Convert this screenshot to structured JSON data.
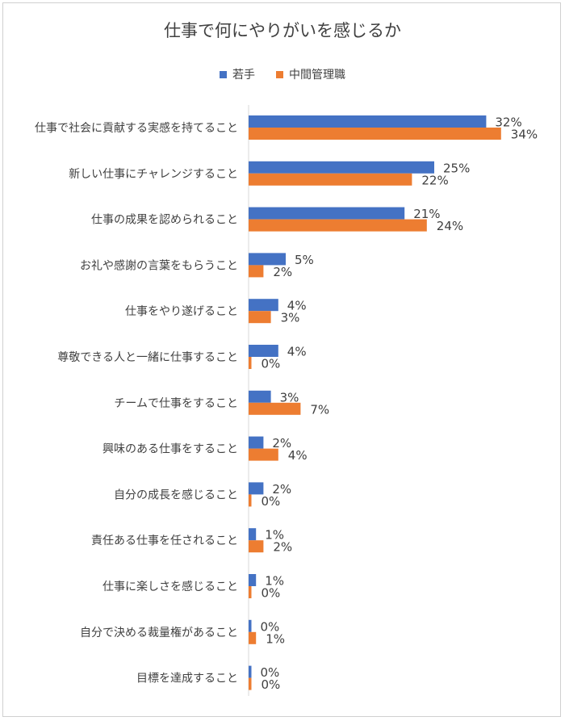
{
  "chart_data": {
    "type": "bar",
    "orientation": "horizontal",
    "title": "仕事で何にやりがいを感じるか",
    "legend_position": "top",
    "categories": [
      "仕事で社会に貢献する実感を持てること",
      "新しい仕事にチャレンジすること",
      "仕事の成果を認められること",
      "お礼や感謝の言葉をもらうこと",
      "仕事をやり遂げること",
      "尊敬できる人と一緒に仕事すること",
      "チームで仕事をすること",
      "興味のある仕事をすること",
      "自分の成長を感じること",
      "責任ある仕事を任されること",
      "仕事に楽しさを感じること",
      "自分で決める裁量権があること",
      "目標を達成すること"
    ],
    "series": [
      {
        "name": "若手",
        "color": "#4472C4",
        "values": [
          32,
          25,
          21,
          5,
          4,
          4,
          3,
          2,
          2,
          1,
          1,
          0,
          0
        ],
        "labels": [
          "32%",
          "25%",
          "21%",
          "5%",
          "4%",
          "4%",
          "3%",
          "2%",
          "2%",
          "1%",
          "1%",
          "0%",
          "0%"
        ]
      },
      {
        "name": "中間管理職",
        "color": "#ED7D31",
        "values": [
          34,
          22,
          24,
          2,
          3,
          0,
          7,
          4,
          0,
          2,
          0,
          1,
          0
        ],
        "labels": [
          "34%",
          "22%",
          "24%",
          "2%",
          "3%",
          "0%",
          "7%",
          "4%",
          "0%",
          "2%",
          "0%",
          "1%",
          "0%"
        ]
      }
    ],
    "xlim": [
      0,
      35
    ],
    "grid": false
  }
}
